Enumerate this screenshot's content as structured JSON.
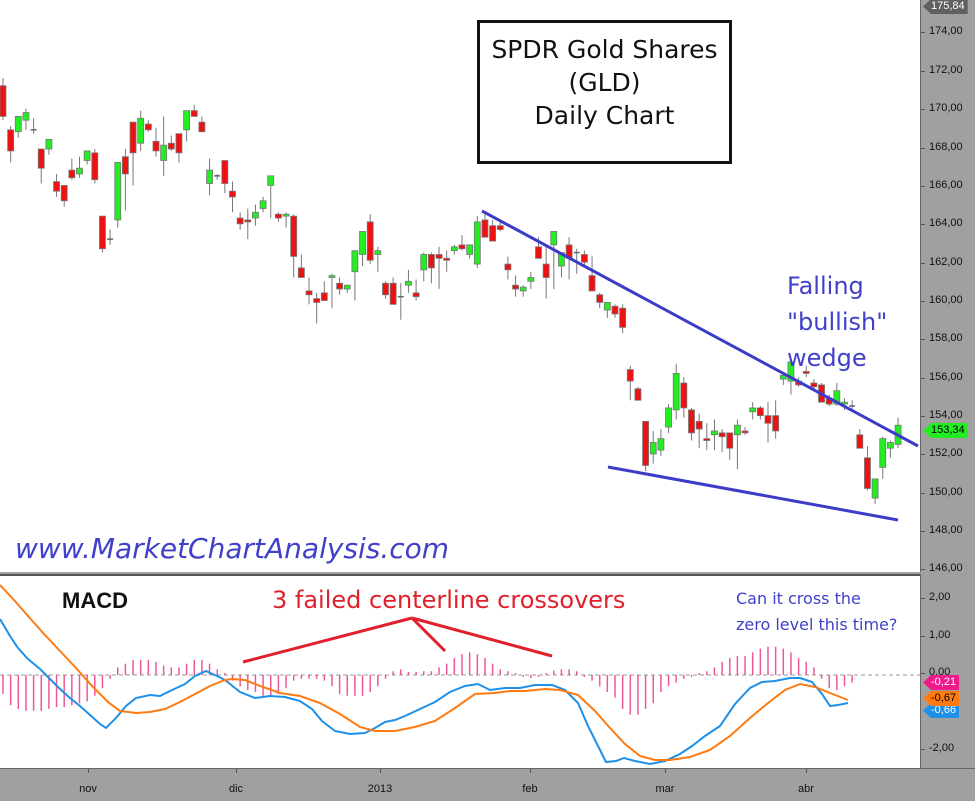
{
  "chart_data": [
    {
      "type": "candlestick",
      "title": "SPDR Gold Shares (GLD) Daily Chart",
      "xlabel": "",
      "ylabel": "Price",
      "ylim": [
        146,
        175.84
      ],
      "y_ticks": [
        "174,00",
        "172,00",
        "170,00",
        "168,00",
        "166,00",
        "164,00",
        "162,00",
        "160,00",
        "158,00",
        "156,00",
        "154,00",
        "152,00",
        "150,00",
        "148,00",
        "146,00"
      ],
      "x_ticks": [
        "nov",
        "dic",
        "2013",
        "feb",
        "mar",
        "abr"
      ],
      "last_price": "153,34",
      "high_label": "175,84",
      "annotations": [
        "Falling \"bullish\" wedge",
        "www.MarketChartAnalysis.com"
      ],
      "wedge_upper": {
        "from": [
          482,
          211
        ],
        "to": [
          918,
          446
        ]
      },
      "wedge_lower": {
        "from": [
          608,
          467
        ],
        "to": [
          898,
          520
        ]
      },
      "candles": [
        {
          "o": 171.2,
          "h": 171.6,
          "l": 169.4,
          "c": 169.6
        },
        {
          "o": 168.9,
          "h": 169.1,
          "l": 167.2,
          "c": 167.8
        },
        {
          "o": 168.8,
          "h": 169.6,
          "l": 168.5,
          "c": 169.6
        },
        {
          "o": 169.4,
          "h": 170.0,
          "l": 168.9,
          "c": 169.8
        },
        {
          "o": 168.9,
          "h": 169.5,
          "l": 168.7,
          "c": 168.9
        },
        {
          "o": 167.9,
          "h": 167.9,
          "l": 166.1,
          "c": 166.9
        },
        {
          "o": 167.9,
          "h": 168.4,
          "l": 167.6,
          "c": 168.4
        },
        {
          "o": 166.2,
          "h": 166.6,
          "l": 165.4,
          "c": 165.7
        },
        {
          "o": 166.0,
          "h": 166.0,
          "l": 164.9,
          "c": 165.2
        },
        {
          "o": 166.8,
          "h": 167.4,
          "l": 166.3,
          "c": 166.4
        },
        {
          "o": 166.6,
          "h": 167.5,
          "l": 166.4,
          "c": 166.9
        },
        {
          "o": 167.3,
          "h": 167.8,
          "l": 167.1,
          "c": 167.8
        },
        {
          "o": 167.7,
          "h": 167.9,
          "l": 166.1,
          "c": 166.3
        },
        {
          "o": 164.4,
          "h": 164.4,
          "l": 162.5,
          "c": 162.7
        },
        {
          "o": 163.2,
          "h": 163.7,
          "l": 162.9,
          "c": 163.2
        },
        {
          "o": 164.2,
          "h": 167.2,
          "l": 163.8,
          "c": 167.2
        },
        {
          "o": 167.5,
          "h": 167.9,
          "l": 164.7,
          "c": 166.6
        },
        {
          "o": 169.3,
          "h": 169.3,
          "l": 166.0,
          "c": 167.7
        },
        {
          "o": 168.2,
          "h": 169.9,
          "l": 167.8,
          "c": 169.5
        },
        {
          "o": 169.2,
          "h": 169.4,
          "l": 168.8,
          "c": 168.9
        },
        {
          "o": 168.3,
          "h": 169.0,
          "l": 167.5,
          "c": 167.8
        },
        {
          "o": 167.3,
          "h": 169.6,
          "l": 166.5,
          "c": 168.1
        },
        {
          "o": 168.2,
          "h": 168.6,
          "l": 167.8,
          "c": 167.9
        },
        {
          "o": 168.7,
          "h": 168.7,
          "l": 167.2,
          "c": 167.7
        },
        {
          "o": 168.9,
          "h": 169.6,
          "l": 168.3,
          "c": 169.9
        },
        {
          "o": 169.9,
          "h": 170.2,
          "l": 169.6,
          "c": 169.6
        },
        {
          "o": 169.3,
          "h": 169.6,
          "l": 168.9,
          "c": 168.8
        },
        {
          "o": 166.1,
          "h": 167.4,
          "l": 165.5,
          "c": 166.8
        },
        {
          "o": 166.5,
          "h": 166.6,
          "l": 166.3,
          "c": 166.5
        },
        {
          "o": 167.3,
          "h": 167.3,
          "l": 165.6,
          "c": 166.1
        },
        {
          "o": 165.7,
          "h": 166.2,
          "l": 164.6,
          "c": 165.4
        }
      ]
    },
    {
      "type": "line",
      "title": "MACD",
      "ylim": [
        -2.6,
        2.6
      ],
      "y_ticks": [
        "2,00",
        "1,00",
        "0,00",
        "-1,00",
        "-2,00"
      ],
      "series": [
        {
          "name": "MACD",
          "color": "#1e90e8",
          "last": "-0,66"
        },
        {
          "name": "Signal",
          "color": "#ff7a10",
          "last": "-0,67"
        },
        {
          "name": "Histogram",
          "color": "#e8207a",
          "last": "-0,21"
        }
      ],
      "annotations": [
        "3 failed centerline crossovers",
        "Can it cross the zero level this time?"
      ]
    }
  ],
  "title_box": {
    "line1": "SPDR Gold Shares",
    "line2": "(GLD)",
    "line3": "Daily Chart"
  },
  "wedge_label": {
    "line1": "Falling",
    "line2": "\"bullish\"",
    "line3": "wedge"
  },
  "website": "www.MarketChartAnalysis.com",
  "macd": {
    "title": "MACD",
    "failed_label": "3 failed centerline crossovers",
    "question_line1": "Can it cross the",
    "question_line2": "zero level this time?"
  },
  "price_axis": {
    "ticks": [
      {
        "label": "174,00",
        "y": 32
      },
      {
        "label": "172,00",
        "y": 71
      },
      {
        "label": "170,00",
        "y": 109
      },
      {
        "label": "168,00",
        "y": 148
      },
      {
        "label": "166,00",
        "y": 186
      },
      {
        "label": "164,00",
        "y": 224
      },
      {
        "label": "162,00",
        "y": 263
      },
      {
        "label": "160,00",
        "y": 301
      },
      {
        "label": "158,00",
        "y": 339
      },
      {
        "label": "156,00",
        "y": 378
      },
      {
        "label": "154,00",
        "y": 416
      },
      {
        "label": "152,00",
        "y": 454
      },
      {
        "label": "150,00",
        "y": 493
      },
      {
        "label": "148,00",
        "y": 531
      },
      {
        "label": "146,00",
        "y": 569
      }
    ],
    "high_tag": {
      "label": "175,84",
      "color": "#606060",
      "text_color": "#ffffff"
    },
    "last_tag": {
      "label": "153,34",
      "color": "#22ee22",
      "text_color": "#000000"
    }
  },
  "macd_axis": {
    "ticks": [
      {
        "label": "2,00",
        "y": 24
      },
      {
        "label": "1,00",
        "y": 62
      },
      {
        "label": "0,00",
        "y": 99
      },
      {
        "label": "-2,00",
        "y": 175
      }
    ],
    "hist_tag": {
      "label": "-0,21",
      "color": "#ee1a8a",
      "text_color": "#ffffff"
    },
    "signal_tag": {
      "label": "-0,67",
      "color": "#ff7a10",
      "text_color": "#000000"
    },
    "macd_tag": {
      "label": "-0,66",
      "color": "#1e90e8",
      "text_color": "#ffffff"
    }
  },
  "time_axis": {
    "labels": [
      {
        "label": "nov",
        "x": 88
      },
      {
        "label": "dic",
        "x": 236
      },
      {
        "label": "2013",
        "x": 380
      },
      {
        "label": "feb",
        "x": 530
      },
      {
        "label": "mar",
        "x": 665
      },
      {
        "label": "abr",
        "x": 806
      }
    ]
  },
  "colors": {
    "up": "#22ee22",
    "down": "#ee1111",
    "wedge": "#3c3cc8",
    "annotation_red": "#e0202a",
    "annotation_blue": "#4040c8"
  }
}
